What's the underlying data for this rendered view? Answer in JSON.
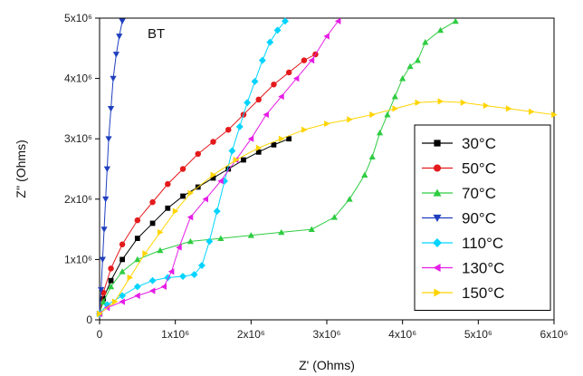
{
  "chart_data": {
    "type": "scatter",
    "title": "",
    "annotation": "BT",
    "xlabel": "Z' (Ohms)",
    "ylabel": "Z'' (Ohms)",
    "xlim": [
      0,
      6000000
    ],
    "ylim": [
      0,
      5000000
    ],
    "x_ticks": [
      {
        "value": 0,
        "label": "0"
      },
      {
        "value": 1000000,
        "label": "1x10⁶"
      },
      {
        "value": 2000000,
        "label": "2x10⁶"
      },
      {
        "value": 3000000,
        "label": "3x10⁶"
      },
      {
        "value": 4000000,
        "label": "4x10⁶"
      },
      {
        "value": 5000000,
        "label": "5x10⁶"
      },
      {
        "value": 6000000,
        "label": "6x10⁶"
      }
    ],
    "y_ticks": [
      {
        "value": 0,
        "label": "0"
      },
      {
        "value": 1000000,
        "label": "1x10⁶"
      },
      {
        "value": 2000000,
        "label": "2x10⁶"
      },
      {
        "value": 3000000,
        "label": "3x10⁶"
      },
      {
        "value": 4000000,
        "label": "4x10⁶"
      },
      {
        "value": 5000000,
        "label": "5x10⁶"
      }
    ],
    "grid": false,
    "legend_position": "bottom-right",
    "series": [
      {
        "name": "30°C",
        "color": "#000000",
        "marker": "square",
        "x": [
          0,
          50000,
          150000,
          300000,
          500000,
          700000,
          900000,
          1100000,
          1300000,
          1500000,
          1700000,
          1900000,
          2100000,
          2300000,
          2500000
        ],
        "y": [
          100000,
          350000,
          650000,
          1000000,
          1350000,
          1600000,
          1850000,
          2050000,
          2200000,
          2350000,
          2500000,
          2650000,
          2780000,
          2900000,
          3000000
        ]
      },
      {
        "name": "50°C",
        "color": "#e41a1c",
        "marker": "circle",
        "x": [
          0,
          50000,
          150000,
          300000,
          500000,
          700000,
          900000,
          1100000,
          1300000,
          1500000,
          1700000,
          1900000,
          2100000,
          2300000,
          2500000,
          2700000,
          2850000
        ],
        "y": [
          100000,
          450000,
          850000,
          1250000,
          1650000,
          1950000,
          2250000,
          2500000,
          2750000,
          2950000,
          3150000,
          3400000,
          3650000,
          3900000,
          4100000,
          4300000,
          4400000
        ]
      },
      {
        "name": "70°C",
        "color": "#2ecc40",
        "marker": "triangle-up",
        "x": [
          0,
          50000,
          150000,
          300000,
          500000,
          800000,
          1200000,
          1600000,
          2000000,
          2400000,
          2800000,
          3100000,
          3300000,
          3500000,
          3600000,
          3700000,
          3800000,
          3900000,
          4000000,
          4100000,
          4200000,
          4300000,
          4500000,
          4700000
        ],
        "y": [
          100000,
          300000,
          550000,
          800000,
          1000000,
          1150000,
          1300000,
          1350000,
          1400000,
          1450000,
          1500000,
          1700000,
          2000000,
          2400000,
          2700000,
          3100000,
          3400000,
          3700000,
          4000000,
          4200000,
          4300000,
          4600000,
          4800000,
          4950000
        ]
      },
      {
        "name": "90°C",
        "color": "#1f3fbf",
        "marker": "triangle-down",
        "x": [
          0,
          20000,
          40000,
          60000,
          80000,
          100000,
          120000,
          150000,
          180000,
          220000,
          260000,
          300000
        ],
        "y": [
          100000,
          500000,
          1000000,
          1500000,
          2000000,
          2500000,
          3000000,
          3500000,
          4000000,
          4400000,
          4700000,
          4950000
        ]
      },
      {
        "name": "110°C",
        "color": "#00d4ff",
        "marker": "diamond",
        "x": [
          0,
          100000,
          300000,
          500000,
          700000,
          900000,
          1100000,
          1250000,
          1350000,
          1450000,
          1550000,
          1650000,
          1750000,
          1850000,
          1950000,
          2050000,
          2150000,
          2250000,
          2350000,
          2450000
        ],
        "y": [
          100000,
          250000,
          400000,
          550000,
          650000,
          700000,
          720000,
          750000,
          900000,
          1300000,
          1800000,
          2300000,
          2800000,
          3200000,
          3600000,
          3950000,
          4300000,
          4600000,
          4800000,
          4950000
        ]
      },
      {
        "name": "130°C",
        "color": "#e61ee6",
        "marker": "triangle-left",
        "x": [
          0,
          100000,
          300000,
          500000,
          700000,
          850000,
          950000,
          1050000,
          1200000,
          1400000,
          1600000,
          1800000,
          2000000,
          2200000,
          2400000,
          2600000,
          2800000,
          3000000,
          3150000
        ],
        "y": [
          100000,
          200000,
          300000,
          400000,
          480000,
          550000,
          800000,
          1200000,
          1700000,
          2000000,
          2300000,
          2650000,
          3000000,
          3400000,
          3700000,
          4000000,
          4300000,
          4700000,
          4950000
        ]
      },
      {
        "name": "150°C",
        "color": "#ffd400",
        "marker": "triangle-right",
        "x": [
          0,
          200000,
          400000,
          600000,
          800000,
          1000000,
          1200000,
          1500000,
          1800000,
          2100000,
          2400000,
          2700000,
          3000000,
          3300000,
          3600000,
          3900000,
          4200000,
          4500000,
          4800000,
          5100000,
          5400000,
          5700000,
          6000000
        ],
        "y": [
          100000,
          300000,
          700000,
          1100000,
          1450000,
          1800000,
          2100000,
          2400000,
          2650000,
          2850000,
          3000000,
          3150000,
          3250000,
          3320000,
          3400000,
          3500000,
          3600000,
          3620000,
          3600000,
          3550000,
          3500000,
          3450000,
          3400000
        ]
      }
    ]
  }
}
